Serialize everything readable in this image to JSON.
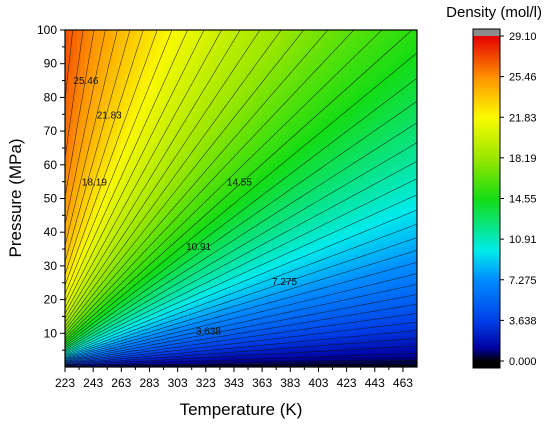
{
  "chart_data": {
    "type": "heatmap",
    "subtype": "filled-contour",
    "xlabel": "Temperature (K)",
    "ylabel": "Pressure (MPa)",
    "colorbar_title": "Density (mol/l)",
    "xlim": [
      223,
      473
    ],
    "ylim": [
      0,
      100
    ],
    "x_ticks": [
      "223",
      "243",
      "263",
      "283",
      "303",
      "323",
      "343",
      "363",
      "383",
      "403",
      "423",
      "443",
      "463"
    ],
    "y_ticks": [
      "10",
      "20",
      "30",
      "40",
      "50",
      "60",
      "70",
      "80",
      "90",
      "100"
    ],
    "colorbar_ticks": [
      "0.000",
      "3.638",
      "7.275",
      "10.91",
      "14.55",
      "18.19",
      "21.83",
      "25.46",
      "29.10"
    ],
    "zlim": [
      0,
      29.1
    ],
    "contour_labels": [
      {
        "text": "25.46",
        "x": 229,
        "y": 84.8
      },
      {
        "text": "21.83",
        "x": 245.5,
        "y": 74.5
      },
      {
        "text": "18.19",
        "x": 235,
        "y": 54.7
      },
      {
        "text": "14.55",
        "x": 338,
        "y": 54.7
      },
      {
        "text": "10.91",
        "x": 309,
        "y": 35.5
      },
      {
        "text": "7.275",
        "x": 370,
        "y": 25.1
      },
      {
        "text": "3.638",
        "x": 316,
        "y": 10.4
      }
    ],
    "grid": false,
    "legend": "colorbar-right"
  }
}
